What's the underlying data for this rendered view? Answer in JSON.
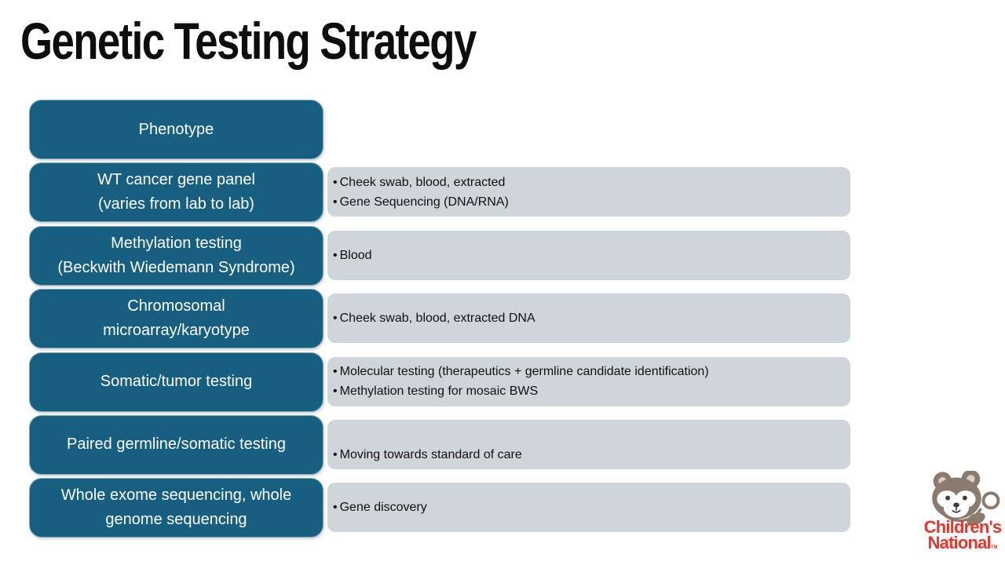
{
  "slide": {
    "title": "Genetic Testing Strategy"
  },
  "rows": [
    {
      "label": "Phenotype",
      "bullets": []
    },
    {
      "label": "WT cancer gene panel\n(varies from lab to lab)",
      "bullets": [
        "Cheek swab, blood, extracted",
        "Gene Sequencing (DNA/RNA)"
      ]
    },
    {
      "label": "Methylation testing\n(Beckwith Wiedemann Syndrome)",
      "bullets": [
        "Blood"
      ]
    },
    {
      "label": "Chromosomal\nmicroarray/karyotype",
      "bullets": [
        "Cheek swab, blood, extracted DNA"
      ]
    },
    {
      "label": "Somatic/tumor testing",
      "bullets": [
        "Molecular testing (therapeutics + germline candidate identification)",
        "Methylation testing for mosaic BWS"
      ]
    },
    {
      "label": "Paired germline/somatic testing",
      "bullets": [
        "Moving towards standard of care"
      ]
    },
    {
      "label": "Whole exome sequencing, whole\ngenome sequencing",
      "bullets": [
        "Gene discovery"
      ]
    }
  ],
  "logo": {
    "line1": "Children's",
    "line2": "National",
    "trademark": "TM"
  },
  "colors": {
    "stage_box": "#165f80",
    "detail_box": "#cfd5db",
    "logo_red": "#e9342a",
    "bear_taupe": "#8a7b6e"
  }
}
